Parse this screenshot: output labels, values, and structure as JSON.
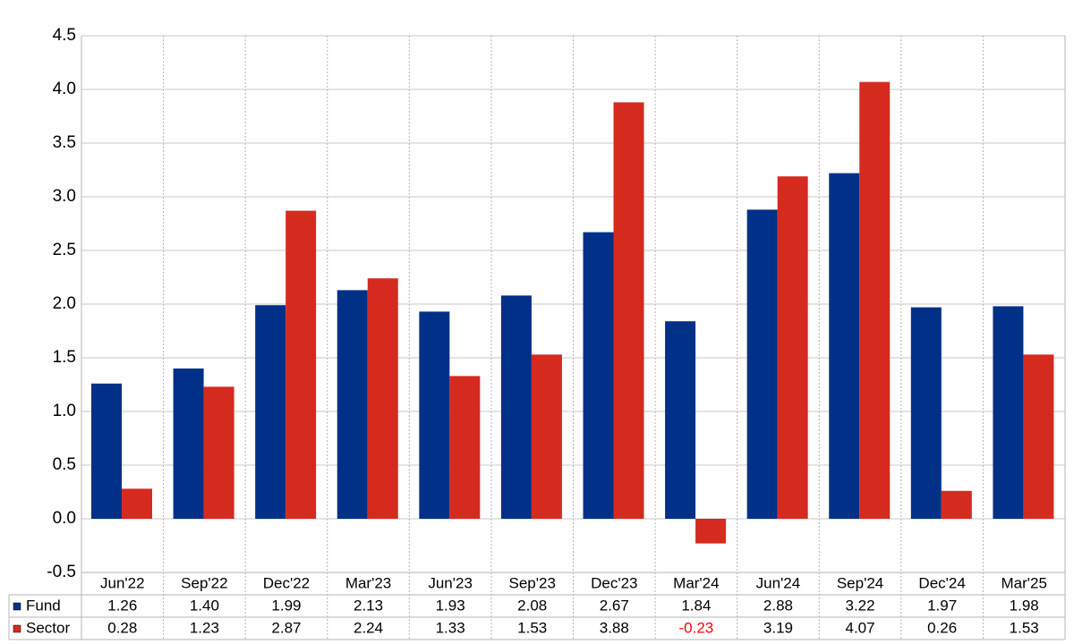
{
  "chart_data": {
    "type": "bar",
    "categories": [
      "Jun'22",
      "Sep'22",
      "Dec'22",
      "Mar'23",
      "Jun'23",
      "Sep'23",
      "Dec'23",
      "Mar'24",
      "Jun'24",
      "Sep'24",
      "Dec'24",
      "Mar'25"
    ],
    "series": [
      {
        "name": "Fund",
        "color": "#003087",
        "values": [
          1.26,
          1.4,
          1.99,
          2.13,
          1.93,
          2.08,
          2.67,
          1.84,
          2.88,
          3.22,
          1.97,
          1.98
        ],
        "value_labels": [
          "1.26",
          "1.40",
          "1.99",
          "2.13",
          "1.93",
          "2.08",
          "2.67",
          "1.84",
          "2.88",
          "3.22",
          "1.97",
          "1.98"
        ]
      },
      {
        "name": "Sector",
        "color": "#d52b1e",
        "values": [
          0.28,
          1.23,
          2.87,
          2.24,
          1.33,
          1.53,
          3.88,
          -0.23,
          3.19,
          4.07,
          0.26,
          1.53
        ],
        "value_labels": [
          "0.28",
          "1.23",
          "2.87",
          "2.24",
          "1.33",
          "1.53",
          "3.88",
          "-0.23",
          "3.19",
          "4.07",
          "0.26",
          "1.53"
        ]
      }
    ],
    "negative_label_color": "#ff0000",
    "ylim": [
      -0.5,
      4.5
    ],
    "yticks": [
      -0.5,
      {
        "value": 0,
        "label": "0.0"
      },
      0.5,
      {
        "value": 1,
        "label": "1.0"
      },
      1.5,
      {
        "value": 2,
        "label": "2.0"
      },
      2.5,
      {
        "value": 3,
        "label": "3.0"
      },
      3.5,
      {
        "value": 4,
        "label": "4.0"
      },
      4.5
    ],
    "grid": true
  }
}
